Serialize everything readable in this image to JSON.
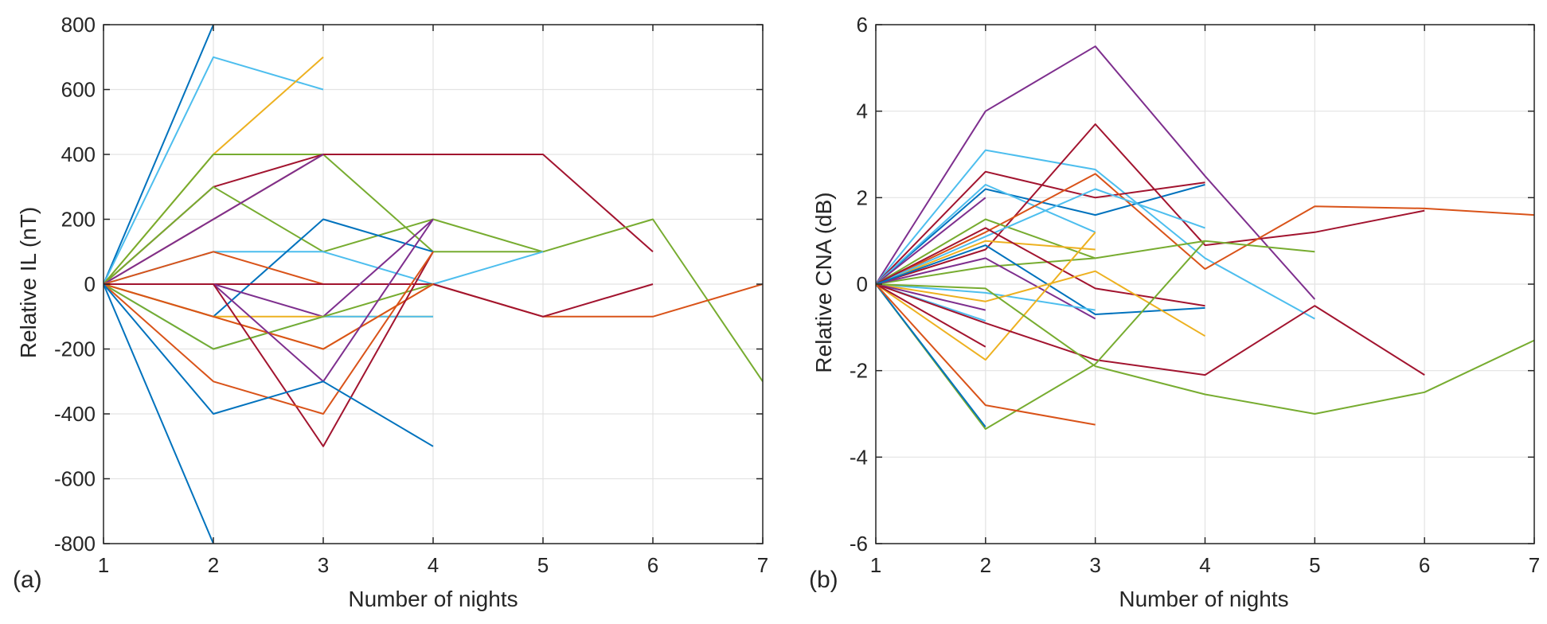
{
  "chart_data": [
    {
      "type": "line",
      "panel_label": "(a)",
      "xlabel": "Number of nights",
      "ylabel": "Relative IL (nT)",
      "xlim": [
        1,
        7
      ],
      "ylim": [
        -800,
        800
      ],
      "xticks": [
        1,
        2,
        3,
        4,
        5,
        6,
        7
      ],
      "yticks": [
        -800,
        -600,
        -400,
        -200,
        0,
        200,
        400,
        600,
        800
      ],
      "grid": true,
      "series": [
        {
          "color": "#0072BD",
          "x": [
            1,
            2
          ],
          "y": [
            0,
            800
          ]
        },
        {
          "color": "#0072BD",
          "x": [
            1,
            2
          ],
          "y": [
            0,
            -800
          ]
        },
        {
          "color": "#4DBEEE",
          "x": [
            1,
            2,
            3
          ],
          "y": [
            0,
            700,
            600
          ]
        },
        {
          "color": "#EDB120",
          "x": [
            1,
            2,
            3
          ],
          "y": [
            0,
            400,
            700
          ]
        },
        {
          "color": "#77AC30",
          "x": [
            1,
            2,
            3,
            4,
            5
          ],
          "y": [
            0,
            400,
            400,
            100,
            100
          ]
        },
        {
          "color": "#A2142F",
          "x": [
            1,
            2,
            3,
            4,
            5,
            6
          ],
          "y": [
            0,
            300,
            400,
            400,
            400,
            100
          ]
        },
        {
          "color": "#D95319",
          "x": [
            1,
            2,
            3
          ],
          "y": [
            0,
            200,
            400
          ]
        },
        {
          "color": "#77AC30",
          "x": [
            1,
            2,
            3,
            4,
            5,
            6,
            7
          ],
          "y": [
            0,
            300,
            100,
            200,
            100,
            200,
            -300
          ]
        },
        {
          "color": "#7E2F8E",
          "x": [
            1,
            2,
            3
          ],
          "y": [
            0,
            200,
            400
          ]
        },
        {
          "color": "#4DBEEE",
          "x": [
            1,
            2,
            3,
            4,
            5
          ],
          "y": [
            0,
            100,
            100,
            0,
            100
          ]
        },
        {
          "color": "#0072BD",
          "x": [
            1,
            2,
            3,
            4
          ],
          "y": [
            0,
            -100,
            200,
            100
          ]
        },
        {
          "color": "#D95319",
          "x": [
            1,
            2,
            3,
            4,
            5,
            6,
            7
          ],
          "y": [
            0,
            100,
            0,
            0,
            -100,
            -100,
            0
          ]
        },
        {
          "color": "#A2142F",
          "x": [
            1,
            2,
            3,
            4,
            5,
            6
          ],
          "y": [
            0,
            0,
            0,
            0,
            -100,
            0
          ]
        },
        {
          "color": "#7E2F8E",
          "x": [
            1,
            2,
            3,
            4
          ],
          "y": [
            0,
            0,
            -100,
            200
          ]
        },
        {
          "color": "#EDB120",
          "x": [
            1,
            2,
            3,
            4
          ],
          "y": [
            0,
            -100,
            -100,
            -100
          ]
        },
        {
          "color": "#4DBEEE",
          "x": [
            1,
            2,
            3,
            4
          ],
          "y": [
            0,
            -200,
            -100,
            -100
          ]
        },
        {
          "color": "#77AC30",
          "x": [
            1,
            2,
            3,
            4
          ],
          "y": [
            0,
            -200,
            -100,
            0
          ]
        },
        {
          "color": "#EDB120",
          "x": [
            1,
            2,
            3,
            4
          ],
          "y": [
            0,
            -100,
            -200,
            0
          ]
        },
        {
          "color": "#D95319",
          "x": [
            1,
            2,
            3,
            4
          ],
          "y": [
            0,
            -100,
            -200,
            0
          ]
        },
        {
          "color": "#7E2F8E",
          "x": [
            1,
            2,
            3,
            4
          ],
          "y": [
            0,
            0,
            -300,
            200
          ]
        },
        {
          "color": "#A2142F",
          "x": [
            1,
            2,
            3,
            4
          ],
          "y": [
            0,
            0,
            -500,
            100
          ]
        },
        {
          "color": "#D95319",
          "x": [
            1,
            2,
            3,
            4
          ],
          "y": [
            0,
            -300,
            -400,
            100
          ]
        },
        {
          "color": "#0072BD",
          "x": [
            1,
            2,
            3,
            4
          ],
          "y": [
            0,
            -400,
            -300,
            -500
          ]
        }
      ]
    },
    {
      "type": "line",
      "panel_label": "(b)",
      "xlabel": "Number of nights",
      "ylabel": "Relative CNA (dB)",
      "xlim": [
        1,
        7
      ],
      "ylim": [
        -6,
        6
      ],
      "xticks": [
        1,
        2,
        3,
        4,
        5,
        6,
        7
      ],
      "yticks": [
        -6,
        -4,
        -2,
        0,
        2,
        4,
        6
      ],
      "grid": true,
      "series": [
        {
          "color": "#7E2F8E",
          "x": [
            1,
            2,
            3,
            4,
            5
          ],
          "y": [
            0,
            4.0,
            5.5,
            2.5,
            -0.35
          ]
        },
        {
          "color": "#4DBEEE",
          "x": [
            1,
            2,
            3,
            4,
            5
          ],
          "y": [
            0,
            3.1,
            2.65,
            0.6,
            -0.8
          ]
        },
        {
          "color": "#A2142F",
          "x": [
            1,
            2,
            3,
            4
          ],
          "y": [
            0,
            2.6,
            2.0,
            2.35
          ]
        },
        {
          "color": "#0072BD",
          "x": [
            1,
            2,
            3,
            4
          ],
          "y": [
            0,
            2.2,
            1.6,
            2.3
          ]
        },
        {
          "color": "#4DBEEE",
          "x": [
            1,
            2,
            3
          ],
          "y": [
            0,
            2.3,
            1.2
          ]
        },
        {
          "color": "#7E2F8E",
          "x": [
            1,
            2
          ],
          "y": [
            0,
            2.0
          ]
        },
        {
          "color": "#A2142F",
          "x": [
            1,
            2,
            3,
            4,
            5,
            6
          ],
          "y": [
            0,
            0.8,
            3.7,
            0.9,
            1.2,
            1.7
          ]
        },
        {
          "color": "#D95319",
          "x": [
            1,
            2,
            3,
            4,
            5,
            6,
            7
          ],
          "y": [
            0,
            1.2,
            2.55,
            0.35,
            1.8,
            1.75,
            1.6
          ]
        },
        {
          "color": "#77AC30",
          "x": [
            1,
            2,
            3,
            4,
            5
          ],
          "y": [
            0,
            0.4,
            0.6,
            1.0,
            0.75
          ]
        },
        {
          "color": "#77AC30",
          "x": [
            1,
            2,
            3
          ],
          "y": [
            0,
            1.5,
            0.6
          ]
        },
        {
          "color": "#EDB120",
          "x": [
            1,
            2,
            3
          ],
          "y": [
            0,
            1.0,
            0.8
          ]
        },
        {
          "color": "#4DBEEE",
          "x": [
            1,
            2,
            3,
            4
          ],
          "y": [
            0,
            1.1,
            2.2,
            1.3
          ]
        },
        {
          "color": "#A2142F",
          "x": [
            1,
            2,
            3,
            4
          ],
          "y": [
            0,
            1.3,
            -0.1,
            -0.5
          ]
        },
        {
          "color": "#7E2F8E",
          "x": [
            1,
            2,
            3
          ],
          "y": [
            0,
            0.6,
            -0.8
          ]
        },
        {
          "color": "#0072BD",
          "x": [
            1,
            2,
            3,
            4
          ],
          "y": [
            0,
            0.9,
            -0.7,
            -0.55
          ]
        },
        {
          "color": "#4DBEEE",
          "x": [
            1,
            2,
            3
          ],
          "y": [
            0,
            -0.2,
            -0.6
          ]
        },
        {
          "color": "#EDB120",
          "x": [
            1,
            2,
            3,
            4
          ],
          "y": [
            0,
            -0.4,
            0.3,
            -1.2
          ]
        },
        {
          "color": "#4DBEEE",
          "x": [
            1,
            2
          ],
          "y": [
            0,
            -0.85
          ]
        },
        {
          "color": "#7E2F8E",
          "x": [
            1,
            2
          ],
          "y": [
            0,
            -0.6
          ]
        },
        {
          "color": "#EDB120",
          "x": [
            1,
            2,
            3
          ],
          "y": [
            0,
            -1.75,
            1.2
          ]
        },
        {
          "color": "#A2142F",
          "x": [
            1,
            2
          ],
          "y": [
            0,
            -1.45
          ]
        },
        {
          "color": "#A2142F",
          "x": [
            1,
            2,
            3,
            4,
            5,
            6
          ],
          "y": [
            0,
            -0.9,
            -1.75,
            -2.1,
            -0.5,
            -2.1
          ]
        },
        {
          "color": "#77AC30",
          "x": [
            1,
            2,
            3,
            4,
            5,
            6,
            7
          ],
          "y": [
            0,
            -0.1,
            -1.9,
            -2.55,
            -3.0,
            -2.5,
            -1.3
          ]
        },
        {
          "color": "#77AC30",
          "x": [
            1,
            2,
            3,
            4
          ],
          "y": [
            0,
            -3.35,
            -1.85,
            1.0
          ]
        },
        {
          "color": "#0072BD",
          "x": [
            1,
            2
          ],
          "y": [
            0,
            -3.3
          ]
        },
        {
          "color": "#D95319",
          "x": [
            1,
            2,
            3
          ],
          "y": [
            0,
            -2.8,
            -3.25
          ]
        }
      ]
    }
  ]
}
